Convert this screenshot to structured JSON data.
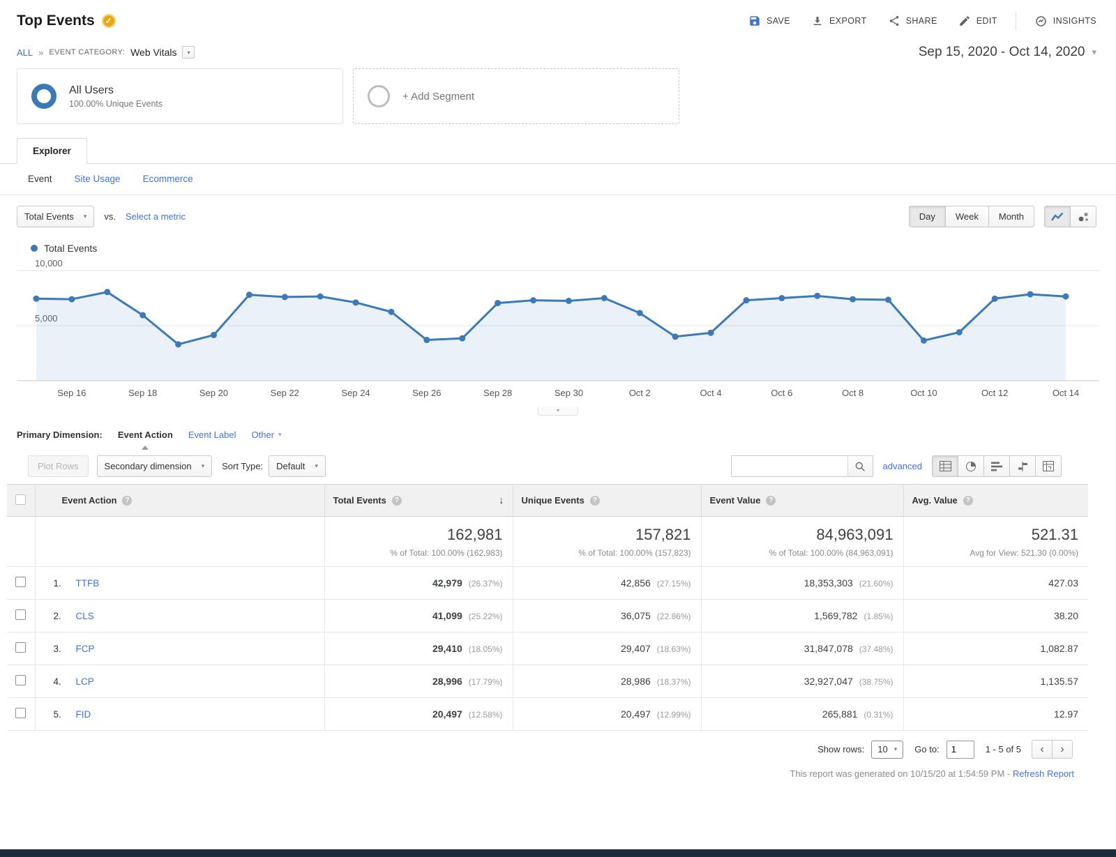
{
  "header": {
    "title": "Top Events",
    "actions": {
      "save": "SAVE",
      "export": "EXPORT",
      "share": "SHARE",
      "edit": "EDIT",
      "insights": "INSIGHTS"
    }
  },
  "breadcrumb": {
    "all": "ALL",
    "separator": "»",
    "category_label": "EVENT CATEGORY:",
    "category_value": "Web Vitals"
  },
  "date_range": "Sep 15, 2020 - Oct 14, 2020",
  "segments": {
    "all_users": {
      "title": "All Users",
      "subtitle": "100.00% Unique Events"
    },
    "add_segment": "+ Add Segment"
  },
  "tabs": {
    "explorer": "Explorer",
    "subtabs": [
      "Event",
      "Site Usage",
      "Ecommerce"
    ]
  },
  "chart_controls": {
    "metric_selector": "Total Events",
    "vs_label": "vs.",
    "select_metric": "Select a metric",
    "granularity": [
      "Day",
      "Week",
      "Month"
    ],
    "active_granularity": "Day"
  },
  "legend_label": "Total Events",
  "chart_data": {
    "type": "line",
    "title": "Total Events",
    "x": [
      "Sep 15",
      "Sep 16",
      "Sep 17",
      "Sep 18",
      "Sep 19",
      "Sep 20",
      "Sep 21",
      "Sep 22",
      "Sep 23",
      "Sep 24",
      "Sep 25",
      "Sep 26",
      "Sep 27",
      "Sep 28",
      "Sep 29",
      "Sep 30",
      "Oct 1",
      "Oct 2",
      "Oct 3",
      "Oct 4",
      "Oct 5",
      "Oct 6",
      "Oct 7",
      "Oct 8",
      "Oct 9",
      "Oct 10",
      "Oct 11",
      "Oct 12",
      "Oct 13",
      "Oct 14"
    ],
    "values": [
      7450,
      7400,
      8050,
      5950,
      3300,
      4150,
      7800,
      7600,
      7650,
      7100,
      6250,
      3700,
      3850,
      7050,
      7300,
      7250,
      7500,
      6150,
      4000,
      4350,
      7300,
      7500,
      7700,
      7400,
      7350,
      3650,
      4400,
      7450,
      7850,
      7650
    ],
    "ylim": [
      0,
      10000
    ],
    "yticks": [
      5000,
      10000
    ],
    "ytick_labels": [
      "5,000",
      "10,000"
    ],
    "x_tick_start": 1,
    "x_tick_step": 2,
    "line_color": "#3b79b8",
    "fill_color": "rgba(59,121,184,0.10)",
    "grid": true,
    "legend_position": "top-left"
  },
  "primary_dimension": {
    "label": "Primary Dimension:",
    "active": "Event Action",
    "options": [
      "Event Action",
      "Event Label",
      "Other"
    ]
  },
  "table_toolbar": {
    "plot_rows": "Plot Rows",
    "secondary_dimension": "Secondary dimension",
    "sort_type_label": "Sort Type:",
    "sort_type_value": "Default",
    "advanced_link": "advanced"
  },
  "table": {
    "columns": [
      "Event Action",
      "Total Events",
      "Unique Events",
      "Event Value",
      "Avg. Value"
    ],
    "totals": {
      "total_events": "162,981",
      "total_events_sub": "% of Total: 100.00% (162,983)",
      "unique_events": "157,821",
      "unique_events_sub": "% of Total: 100.00% (157,823)",
      "event_value": "84,963,091",
      "event_value_sub": "% of Total: 100.00% (84,963,091)",
      "avg_value": "521.31",
      "avg_value_sub": "Avg for View: 521.30 (0.00%)"
    },
    "rows": [
      {
        "rank": "1.",
        "action": "TTFB",
        "total_events": "42,979",
        "total_events_pct": "(26.37%)",
        "unique_events": "42,856",
        "unique_events_pct": "(27.15%)",
        "event_value": "18,353,303",
        "event_value_pct": "(21.60%)",
        "avg_value": "427.03"
      },
      {
        "rank": "2.",
        "action": "CLS",
        "total_events": "41,099",
        "total_events_pct": "(25.22%)",
        "unique_events": "36,075",
        "unique_events_pct": "(22.86%)",
        "event_value": "1,569,782",
        "event_value_pct": "(1.85%)",
        "avg_value": "38.20"
      },
      {
        "rank": "3.",
        "action": "FCP",
        "total_events": "29,410",
        "total_events_pct": "(18.05%)",
        "unique_events": "29,407",
        "unique_events_pct": "(18.63%)",
        "event_value": "31,847,078",
        "event_value_pct": "(37.48%)",
        "avg_value": "1,082.87"
      },
      {
        "rank": "4.",
        "action": "LCP",
        "total_events": "28,996",
        "total_events_pct": "(17.79%)",
        "unique_events": "28,986",
        "unique_events_pct": "(18.37%)",
        "event_value": "32,927,047",
        "event_value_pct": "(38.75%)",
        "avg_value": "1,135.57"
      },
      {
        "rank": "5.",
        "action": "FID",
        "total_events": "20,497",
        "total_events_pct": "(12.58%)",
        "unique_events": "20,497",
        "unique_events_pct": "(12.99%)",
        "event_value": "265,881",
        "event_value_pct": "(0.31%)",
        "avg_value": "12.97"
      }
    ]
  },
  "pagination": {
    "show_rows_label": "Show rows:",
    "show_rows_value": "10",
    "goto_label": "Go to:",
    "goto_value": "1",
    "range": "1 - 5 of 5"
  },
  "footer": {
    "generated_text": "This report was generated on 10/15/20 at 1:54:59 PM -",
    "refresh_link": "Refresh Report"
  }
}
